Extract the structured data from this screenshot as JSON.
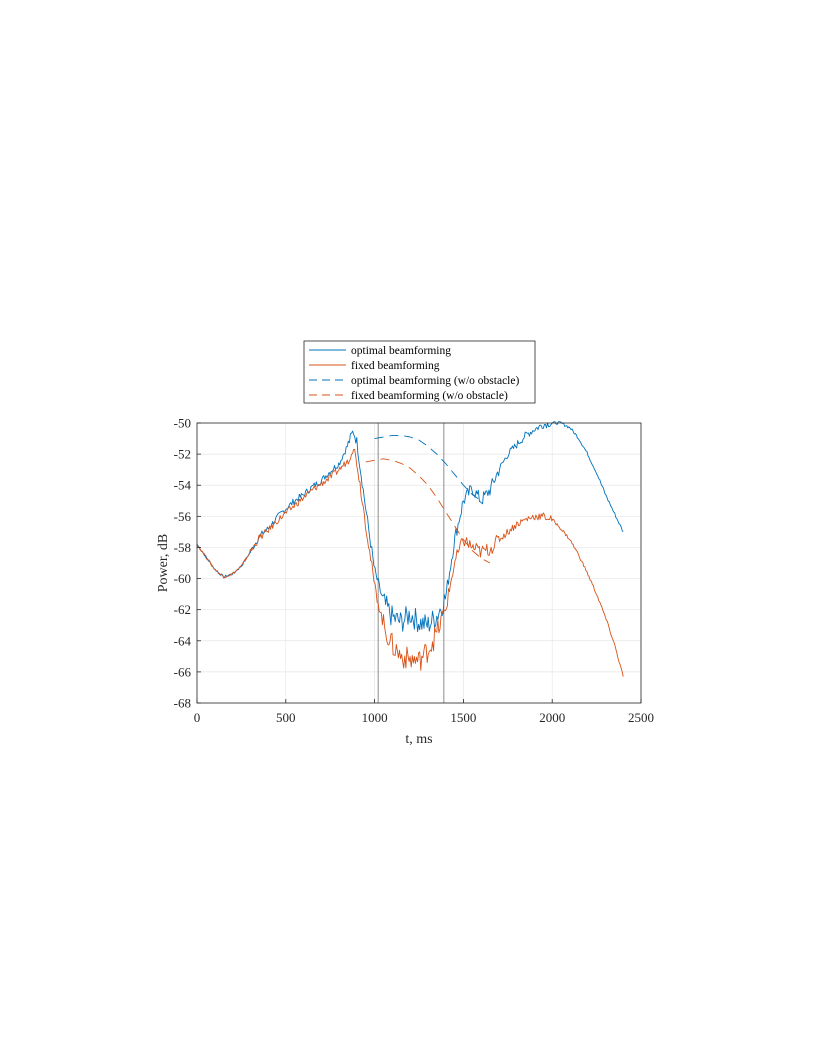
{
  "chart_data": {
    "type": "line",
    "xlabel": "t, ms",
    "ylabel": "Power, dB",
    "xlim": [
      0,
      2500
    ],
    "ylim": [
      -68,
      -50
    ],
    "xticks": [
      0,
      500,
      1000,
      1500,
      2000,
      2500
    ],
    "yticks": [
      -68,
      -66,
      -64,
      -62,
      -60,
      -58,
      -56,
      -54,
      -52,
      -50
    ],
    "grid": true,
    "legend": "top, outside",
    "vlines": [
      1020,
      1390
    ],
    "series": [
      {
        "name": "optimal beamforming",
        "style": "solid",
        "color": "#0072bd",
        "x": [
          0,
          50,
          100,
          150,
          200,
          250,
          300,
          350,
          400,
          450,
          500,
          550,
          600,
          650,
          700,
          750,
          800,
          850,
          880,
          900,
          950,
          1000,
          1050,
          1100,
          1150,
          1200,
          1250,
          1300,
          1350,
          1400,
          1450,
          1500,
          1550,
          1600,
          1650,
          1700,
          1750,
          1800,
          1850,
          1900,
          1950,
          2000,
          2050,
          2100,
          2150,
          2200,
          2250,
          2300,
          2350,
          2400
        ],
        "y": [
          -57.8,
          -58.6,
          -59.4,
          -59.9,
          -59.7,
          -59.2,
          -58.3,
          -57.3,
          -56.8,
          -56.1,
          -55.5,
          -55.0,
          -54.6,
          -54.1,
          -53.7,
          -53.1,
          -52.6,
          -51.4,
          -50.5,
          -51.2,
          -55.5,
          -59.5,
          -61.5,
          -62.5,
          -62.8,
          -62.3,
          -62.8,
          -63.0,
          -62.4,
          -61.2,
          -57.5,
          -55.0,
          -54.2,
          -55.0,
          -54.3,
          -53.0,
          -52.0,
          -51.4,
          -50.8,
          -50.4,
          -50.1,
          -50.0,
          -50.0,
          -50.3,
          -51.0,
          -52.0,
          -53.2,
          -54.6,
          -55.8,
          -57.0
        ]
      },
      {
        "name": "fixed beamforming",
        "style": "solid",
        "color": "#d95319",
        "x": [
          0,
          50,
          100,
          150,
          200,
          250,
          300,
          350,
          400,
          450,
          500,
          550,
          600,
          650,
          700,
          750,
          800,
          850,
          880,
          900,
          950,
          1000,
          1050,
          1100,
          1150,
          1200,
          1250,
          1300,
          1350,
          1400,
          1450,
          1500,
          1550,
          1600,
          1650,
          1700,
          1750,
          1800,
          1850,
          1900,
          1950,
          2000,
          2050,
          2100,
          2150,
          2200,
          2250,
          2300,
          2350,
          2400
        ],
        "y": [
          -57.8,
          -58.6,
          -59.4,
          -59.9,
          -59.7,
          -59.2,
          -58.3,
          -57.4,
          -56.9,
          -56.3,
          -55.8,
          -55.3,
          -54.8,
          -54.3,
          -53.9,
          -53.5,
          -53.0,
          -52.4,
          -51.5,
          -52.5,
          -56.5,
          -60.5,
          -63.0,
          -64.3,
          -65.0,
          -65.2,
          -65.3,
          -64.6,
          -63.5,
          -62.0,
          -59.0,
          -57.5,
          -58.0,
          -58.3,
          -58.1,
          -57.5,
          -57.0,
          -56.5,
          -56.2,
          -56.0,
          -56.0,
          -56.2,
          -56.8,
          -57.5,
          -58.5,
          -59.7,
          -61.0,
          -62.5,
          -64.2,
          -66.3
        ]
      },
      {
        "name": "optimal beamforming (w/o obstacle)",
        "style": "dashed",
        "color": "#0072bd",
        "x": [
          1000,
          1050,
          1100,
          1150,
          1200,
          1250,
          1300,
          1350,
          1400,
          1450,
          1500,
          1550,
          1600
        ],
        "y": [
          -51.0,
          -50.9,
          -50.8,
          -50.8,
          -50.9,
          -51.1,
          -51.5,
          -52.0,
          -52.6,
          -53.3,
          -54.0,
          -54.6,
          -55.0
        ]
      },
      {
        "name": "fixed beamforming (w/o obstacle)",
        "style": "dashed",
        "color": "#d95319",
        "x": [
          950,
          1000,
          1050,
          1100,
          1150,
          1200,
          1250,
          1300,
          1350,
          1400,
          1450,
          1500,
          1550,
          1600,
          1650
        ],
        "y": [
          -52.5,
          -52.4,
          -52.3,
          -52.4,
          -52.6,
          -52.9,
          -53.4,
          -54.0,
          -54.8,
          -55.7,
          -56.6,
          -57.5,
          -58.2,
          -58.7,
          -59.0
        ]
      }
    ]
  }
}
